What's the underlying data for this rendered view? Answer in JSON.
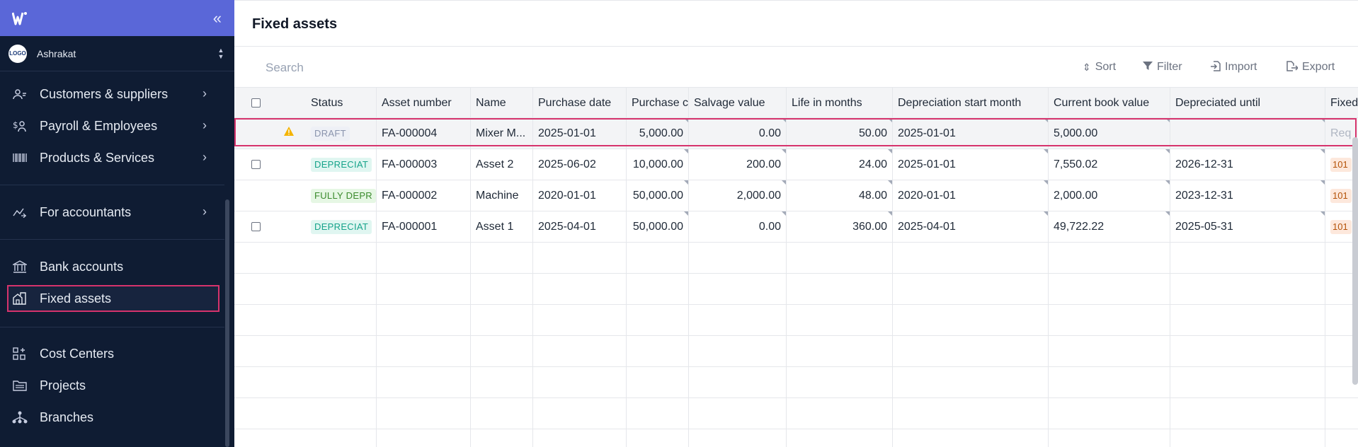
{
  "app": {
    "logo_icon": "w-logo-icon",
    "collapse_icon": "double-chevron-left-icon",
    "org_name": "Ashrakat",
    "org_avatar_text": "LOGO"
  },
  "sidebar": {
    "items": [
      {
        "label": "Customers & suppliers",
        "icon": "users-icon"
      },
      {
        "label": "Payroll & Employees",
        "icon": "payroll-icon"
      },
      {
        "label": "Products & Services",
        "icon": "barcode-icon"
      },
      {
        "label": "For accountants",
        "icon": "chart-line-icon"
      },
      {
        "label": "Bank accounts",
        "icon": "bank-icon"
      },
      {
        "label": "Fixed assets",
        "icon": "building-icon"
      },
      {
        "label": "Cost Centers",
        "icon": "grid-plus-icon"
      },
      {
        "label": "Projects",
        "icon": "folder-icon"
      },
      {
        "label": "Branches",
        "icon": "branches-icon"
      }
    ]
  },
  "page": {
    "title": "Fixed assets",
    "search_placeholder": "Search"
  },
  "toolbar": {
    "sort": "Sort",
    "filter": "Filter",
    "import": "Import",
    "export": "Export"
  },
  "table": {
    "columns": [
      "Status",
      "Asset number",
      "Name",
      "Purchase date",
      "Purchase c",
      "Salvage value",
      "Life in months",
      "Depreciation start month",
      "Current book value",
      "Depreciated until",
      "Fixed"
    ],
    "rows": [
      {
        "warning": true,
        "status": "DRAFT",
        "status_type": "draft",
        "asset_number": "FA-000004",
        "name": "Mixer M...",
        "purchase_date": "2025-01-01",
        "purchase_cost": "5,000.00",
        "salvage_value": "0.00",
        "life_months": "50.00",
        "dep_start": "2025-01-01",
        "book_value": "5,000.00",
        "dep_until": "",
        "fixed": "Req"
      },
      {
        "warning": false,
        "status": "DEPRECIAT",
        "status_type": "dep",
        "asset_number": "FA-000003",
        "name": "Asset 2",
        "purchase_date": "2025-06-02",
        "purchase_cost": "10,000.00",
        "salvage_value": "200.00",
        "life_months": "24.00",
        "dep_start": "2025-01-01",
        "book_value": "7,550.02",
        "dep_until": "2026-12-31",
        "fixed": "101"
      },
      {
        "warning": false,
        "status": "FULLY DEPR",
        "status_type": "full",
        "asset_number": "FA-000002",
        "name": "Machine",
        "purchase_date": "2020-01-01",
        "purchase_cost": "50,000.00",
        "salvage_value": "2,000.00",
        "life_months": "48.00",
        "dep_start": "2020-01-01",
        "book_value": "2,000.00",
        "dep_until": "2023-12-31",
        "fixed": "101"
      },
      {
        "warning": false,
        "status": "DEPRECIAT",
        "status_type": "dep",
        "asset_number": "FA-000001",
        "name": "Asset 1",
        "purchase_date": "2025-04-01",
        "purchase_cost": "50,000.00",
        "salvage_value": "0.00",
        "life_months": "360.00",
        "dep_start": "2025-04-01",
        "book_value": "49,722.22",
        "dep_until": "2025-05-31",
        "fixed": "101"
      }
    ]
  }
}
